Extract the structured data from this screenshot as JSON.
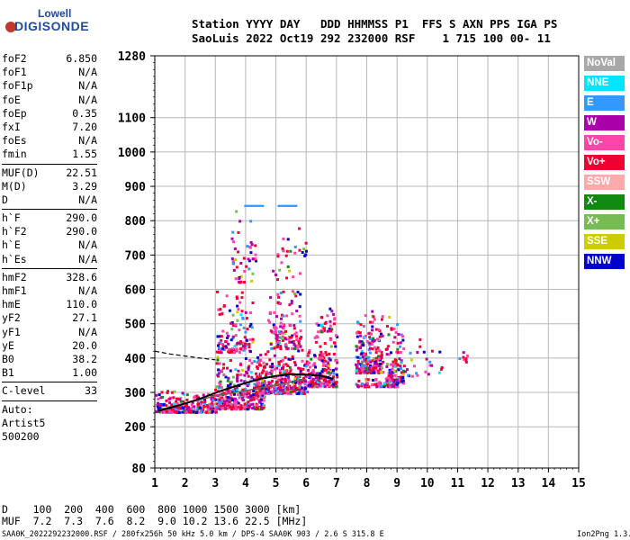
{
  "logo": {
    "top": "Lowell",
    "bottom": "DIGISONDE"
  },
  "header": {
    "line1": "Station YYYY DAY   DDD HHMMSS P1  FFS S AXN PPS IGA PS",
    "line2": "SaoLuis 2022 Oct19 292 232000 RSF    1 715 100 00- 11"
  },
  "params": [
    {
      "name": "foF2",
      "value": "6.850"
    },
    {
      "name": "foF1",
      "value": "N/A"
    },
    {
      "name": "foF1p",
      "value": "N/A"
    },
    {
      "name": "foE",
      "value": "N/A"
    },
    {
      "name": "foEp",
      "value": "0.35"
    },
    {
      "name": "fxI",
      "value": "7.20"
    },
    {
      "name": "foEs",
      "value": "N/A"
    },
    {
      "name": "fmin",
      "value": "1.55"
    },
    {
      "sep": true
    },
    {
      "name": "MUF(D)",
      "value": "22.51"
    },
    {
      "name": "M(D)",
      "value": "3.29"
    },
    {
      "name": "D",
      "value": "N/A"
    },
    {
      "sep": true
    },
    {
      "name": "h`F",
      "value": "290.0"
    },
    {
      "name": "h`F2",
      "value": "290.0"
    },
    {
      "name": "h`E",
      "value": "N/A"
    },
    {
      "name": "h`Es",
      "value": "N/A"
    },
    {
      "sep": true
    },
    {
      "name": "hmF2",
      "value": "328.6"
    },
    {
      "name": "hmF1",
      "value": "N/A"
    },
    {
      "name": "hmE",
      "value": "110.0"
    },
    {
      "name": "yF2",
      "value": "27.1"
    },
    {
      "name": "yF1",
      "value": "N/A"
    },
    {
      "name": "yE",
      "value": "20.0"
    },
    {
      "name": "B0",
      "value": "38.2"
    },
    {
      "name": "B1",
      "value": "1.00"
    },
    {
      "sep": true
    },
    {
      "name": "C-level",
      "value": "33"
    },
    {
      "sep": true
    },
    {
      "text": "Auto:"
    },
    {
      "text": "Artist5"
    },
    {
      "text": "500200"
    }
  ],
  "legend": [
    {
      "label": "NoVal",
      "color": "#a8a8a8"
    },
    {
      "label": "NNE",
      "color": "#00e5ff"
    },
    {
      "label": "E",
      "color": "#3399ff"
    },
    {
      "label": "W",
      "color": "#aa00aa"
    },
    {
      "label": "Vo-",
      "color": "#ff44aa"
    },
    {
      "label": "Vo+",
      "color": "#ee0033"
    },
    {
      "label": "SSW",
      "color": "#ffaaaa"
    },
    {
      "label": "X-",
      "color": "#118811"
    },
    {
      "label": "X+",
      "color": "#77bb55"
    },
    {
      "label": "SSE",
      "color": "#cccc00"
    },
    {
      "label": "NNW",
      "color": "#0000cc"
    }
  ],
  "bottom": {
    "line1": "D    100  200  400  600  800 1000 1500 3000 [km]",
    "line2": "MUF  7.2  7.3  7.6  8.2  9.0 10.2 13.6 22.5 [MHz]"
  },
  "footer": {
    "left": "SAA0K_2022292232000.RSF / 280fx256h 50 kHz 5.0 km / DPS-4 SAA0K 903 / 2.6 S 315.8 E",
    "right": "Ion2Png 1.3.17"
  },
  "chart_data": {
    "type": "scatter",
    "xlim": [
      1,
      15
    ],
    "ylim": [
      80,
      1280
    ],
    "x_ticks": [
      "1",
      "2",
      "3",
      "4",
      "5",
      "6",
      "7",
      "8",
      "9",
      "10",
      "11",
      "12",
      "13",
      "14",
      "15"
    ],
    "y_ticks": [
      "80",
      "200",
      "300",
      "400",
      "500",
      "600",
      "700",
      "800",
      "900",
      "1000",
      "1100",
      "1280"
    ],
    "grid": true,
    "series": [
      {
        "name": "Vo+",
        "color": "#ee0033"
      },
      {
        "name": "Vo-",
        "color": "#ff44aa"
      },
      {
        "name": "W",
        "color": "#aa00aa"
      },
      {
        "name": "NNW",
        "color": "#0000cc"
      },
      {
        "name": "E",
        "color": "#3399ff"
      },
      {
        "name": "X-",
        "color": "#118811"
      },
      {
        "name": "X+",
        "color": "#77bb55"
      },
      {
        "name": "SSE",
        "color": "#cccc00"
      },
      {
        "name": "NNE",
        "color": "#00e5ff"
      }
    ],
    "clusters": [
      {
        "x": [
          1.0,
          3.0
        ],
        "y": [
          245,
          320
        ],
        "n": 260
      },
      {
        "x": [
          3.0,
          4.6
        ],
        "y": [
          255,
          420
        ],
        "n": 360
      },
      {
        "x": [
          3.0,
          4.2
        ],
        "y": [
          420,
          620
        ],
        "n": 120
      },
      {
        "x": [
          3.5,
          4.3
        ],
        "y": [
          620,
          860
        ],
        "n": 45
      },
      {
        "x": [
          4.3,
          6.0
        ],
        "y": [
          300,
          430
        ],
        "n": 340
      },
      {
        "x": [
          4.7,
          5.8
        ],
        "y": [
          430,
          700
        ],
        "n": 140
      },
      {
        "x": [
          5.0,
          6.0
        ],
        "y": [
          700,
          790
        ],
        "n": 20
      },
      {
        "x": [
          6.0,
          7.0
        ],
        "y": [
          320,
          480
        ],
        "n": 200
      },
      {
        "x": [
          6.3,
          6.9
        ],
        "y": [
          480,
          560
        ],
        "n": 30
      },
      {
        "x": [
          7.6,
          8.5
        ],
        "y": [
          360,
          560
        ],
        "n": 220
      },
      {
        "x": [
          8.6,
          9.2
        ],
        "y": [
          330,
          560
        ],
        "n": 120
      },
      {
        "x": [
          9.2,
          10.5
        ],
        "y": [
          350,
          500
        ],
        "n": 25
      },
      {
        "x": [
          11.0,
          11.3
        ],
        "y": [
          390,
          480
        ],
        "n": 8
      },
      {
        "x": [
          7.6,
          9.0
        ],
        "y": [
          320,
          350
        ],
        "n": 90
      }
    ],
    "profile_curve": {
      "x": [
        1.1,
        1.8,
        2.5,
        3.2,
        3.9,
        4.5,
        5.0,
        5.5,
        6.0,
        6.5,
        6.9
      ],
      "y": [
        246,
        262,
        282,
        305,
        325,
        340,
        348,
        353,
        352,
        348,
        340
      ]
    },
    "o_trace_curve": {
      "x": [
        1.1,
        2.0,
        3.0,
        4.0,
        5.0,
        6.0
      ],
      "y": [
        248,
        268,
        290,
        305,
        322,
        338
      ]
    },
    "dashed_curve": {
      "x": [
        1.0,
        1.5,
        2.0,
        2.5,
        3.0
      ],
      "y": [
        420,
        412,
        406,
        400,
        395
      ]
    },
    "bars": [
      {
        "x": 4.25,
        "y": [
          840,
          846
        ],
        "color": "#3399ff"
      },
      {
        "x": 5.35,
        "y": [
          840,
          846
        ],
        "color": "#3399ff"
      }
    ]
  }
}
